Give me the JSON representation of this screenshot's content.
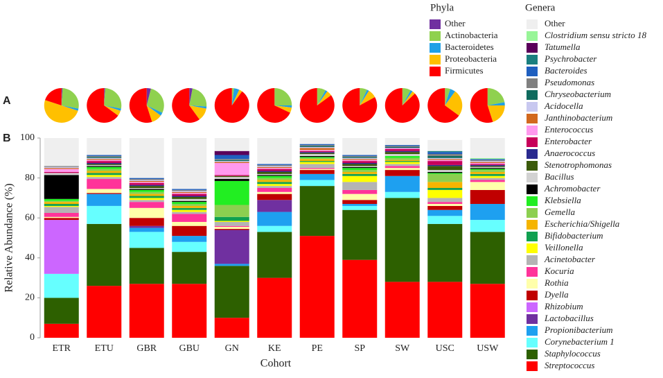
{
  "chart_data": [
    {
      "type": "pie",
      "panel_label": "A",
      "legend_title": "Phyla",
      "series": [
        {
          "name": "Other",
          "color": "#7030a0",
          "values": [
            1,
            1,
            4,
            3,
            0,
            0,
            0,
            0,
            0,
            0,
            0
          ]
        },
        {
          "name": "Actinobacteria",
          "color": "#8fd14f",
          "values": [
            27,
            27,
            28,
            23,
            2,
            25,
            8,
            7,
            8,
            5,
            22
          ]
        },
        {
          "name": "Bacteroidetes",
          "color": "#1fa0e6",
          "values": [
            2,
            2,
            3,
            2,
            5,
            2,
            2,
            2,
            2,
            5,
            3
          ]
        },
        {
          "name": "Proteobacteria",
          "color": "#ffc000",
          "values": [
            50,
            5,
            10,
            12,
            3,
            5,
            5,
            8,
            3,
            25,
            20
          ]
        },
        {
          "name": "Firmicutes",
          "color": "#ff0000",
          "values": [
            20,
            65,
            55,
            60,
            90,
            68,
            85,
            83,
            87,
            65,
            55
          ]
        }
      ]
    },
    {
      "type": "stacked_bar",
      "panel_label": "B",
      "legend_title": "Genera",
      "x_label": "Cohort",
      "y_label": "Relative Abundance (%)",
      "categories": [
        "ETR",
        "ETU",
        "GBR",
        "GBU",
        "GN",
        "KE",
        "PE",
        "SP",
        "SW",
        "USC",
        "USW"
      ],
      "ylim": [
        0,
        100
      ],
      "yticks": [
        0,
        20,
        40,
        60,
        80,
        100
      ],
      "series": [
        {
          "name": "Streptococcus",
          "color": "#ff0000",
          "values": [
            7,
            26,
            27,
            27,
            10,
            30,
            51,
            39,
            28,
            28,
            27
          ]
        },
        {
          "name": "Staphylococcus",
          "color": "#2d6000",
          "values": [
            13,
            31,
            18,
            16,
            26,
            23,
            25,
            25,
            42,
            29,
            26
          ]
        },
        {
          "name": "Corynebacterium 1",
          "color": "#66ffff",
          "values": [
            12,
            9,
            8,
            5,
            0,
            3,
            3,
            2,
            3,
            4,
            6
          ]
        },
        {
          "name": "Propionibacterium",
          "color": "#1ea0f0",
          "values": [
            0,
            6,
            2,
            3,
            1,
            7,
            3,
            1,
            8,
            3,
            8
          ]
        },
        {
          "name": "Lactobacillus",
          "color": "#7030a0",
          "values": [
            0,
            0,
            1,
            0,
            17,
            6,
            0,
            0,
            0,
            0,
            0
          ]
        },
        {
          "name": "Rhizobium",
          "color": "#cc66ff",
          "values": [
            27,
            0,
            0,
            0,
            0,
            0,
            0,
            0,
            0,
            0,
            0
          ]
        },
        {
          "name": "Dyella",
          "color": "#c00000",
          "values": [
            1,
            0.5,
            4,
            5,
            0.5,
            3,
            2,
            2,
            3,
            2,
            7
          ]
        },
        {
          "name": "Rothia",
          "color": "#ffffaa",
          "values": [
            0.5,
            2,
            5,
            2,
            1,
            1,
            0.5,
            3,
            1,
            1,
            4
          ]
        },
        {
          "name": "Kocuria",
          "color": "#ff3399",
          "values": [
            2,
            5,
            3,
            4,
            0.5,
            2,
            0.5,
            2,
            1,
            1,
            1
          ]
        },
        {
          "name": "Acinetobacter",
          "color": "#b4b4b4",
          "values": [
            3,
            1,
            1,
            1,
            2,
            1,
            2,
            4,
            1,
            2,
            1
          ]
        },
        {
          "name": "Veillonella",
          "color": "#ffff00",
          "values": [
            0.5,
            1,
            1,
            1,
            0.5,
            1,
            1,
            3,
            1,
            4,
            1
          ]
        },
        {
          "name": "Bifidobacterium",
          "color": "#10a050",
          "values": [
            1,
            1,
            1,
            1,
            2,
            1,
            0.5,
            1,
            0.5,
            1,
            1
          ]
        },
        {
          "name": "Escherichia/Shigella",
          "color": "#f5b400",
          "values": [
            1,
            1,
            1,
            1,
            0,
            1,
            1,
            1,
            0.5,
            3,
            1
          ]
        },
        {
          "name": "Gemella",
          "color": "#8ccf50",
          "values": [
            0.5,
            1,
            1,
            1,
            6,
            1,
            0.5,
            1,
            1,
            4,
            1
          ]
        },
        {
          "name": "Klebsiella",
          "color": "#22ee22",
          "values": [
            1,
            1,
            1,
            1,
            12,
            1,
            0.5,
            1,
            1,
            0.5,
            0.5
          ]
        },
        {
          "name": "Achromobacter",
          "color": "#000000",
          "values": [
            12,
            0.5,
            0.5,
            0.5,
            1,
            0.5,
            0.5,
            0.5,
            0,
            0.5,
            0.5
          ]
        },
        {
          "name": "Bacillus",
          "color": "#d2d2d2",
          "values": [
            1,
            0.5,
            0.5,
            1,
            1,
            0.5,
            1,
            0.5,
            1,
            1,
            0.5
          ]
        },
        {
          "name": "Stenotrophomonas",
          "color": "#3b5a0a",
          "values": [
            0,
            0.5,
            1,
            1,
            0.5,
            1,
            0.5,
            1,
            1,
            2,
            0.5
          ]
        },
        {
          "name": "Anaerococcus",
          "color": "#2a2a8f",
          "values": [
            0,
            0.5,
            0.5,
            0.5,
            0,
            0.5,
            0.5,
            0.5,
            0.5,
            0.5,
            0.5
          ]
        },
        {
          "name": "Enterobacter",
          "color": "#c8005a",
          "values": [
            0.5,
            1,
            1,
            1,
            0.5,
            1,
            0.5,
            1,
            1,
            2,
            0.5
          ]
        },
        {
          "name": "Enterococcus",
          "color": "#ff99ee",
          "values": [
            1.5,
            0.5,
            0.5,
            0.5,
            6,
            0.5,
            0.5,
            0.5,
            0.5,
            0.5,
            0.5
          ]
        },
        {
          "name": "Janthinobacterium",
          "color": "#d2691e",
          "values": [
            0.5,
            0.5,
            0.5,
            0.5,
            0.5,
            0.5,
            1,
            0.5,
            0,
            0.5,
            0.5
          ]
        },
        {
          "name": "Acidocella",
          "color": "#c8c8f0",
          "values": [
            0.5,
            0.5,
            0.5,
            0.5,
            0.5,
            0.5,
            0.5,
            0.5,
            0,
            0.5,
            0.5
          ]
        },
        {
          "name": "Chryseobacterium",
          "color": "#0f6b5e",
          "values": [
            0,
            0.5,
            0,
            0,
            0.5,
            0,
            0.5,
            0.5,
            0.5,
            1,
            0
          ]
        },
        {
          "name": "Pseudomonas",
          "color": "#808080",
          "values": [
            0.5,
            0.5,
            0.5,
            0.5,
            0.5,
            0.5,
            0.5,
            0.5,
            0.5,
            1,
            0.5
          ]
        },
        {
          "name": "Bacteroides",
          "color": "#1f5fbf",
          "values": [
            0,
            0.5,
            0.5,
            0.5,
            2,
            0.5,
            0.5,
            0.5,
            0.5,
            1,
            0.5
          ]
        },
        {
          "name": "Psychrobacter",
          "color": "#1a7f7f",
          "values": [
            0,
            0,
            0,
            0,
            0,
            0,
            0,
            0,
            0,
            0.5,
            0
          ]
        },
        {
          "name": "Tatumella",
          "color": "#5a005a",
          "values": [
            0,
            0,
            0,
            0,
            2,
            0,
            0,
            0,
            0,
            0,
            0
          ]
        },
        {
          "name": "Clostridium sensu stricto 18",
          "color": "#98f598",
          "values": [
            0,
            0,
            0,
            0,
            0,
            0,
            0,
            0,
            0,
            0,
            0.5
          ]
        },
        {
          "name": "Other",
          "color": "#efefef",
          "values": [
            14,
            8.5,
            20,
            25.5,
            6.5,
            13,
            3,
            8.5,
            3.5,
            5.5,
            10
          ]
        }
      ]
    }
  ]
}
